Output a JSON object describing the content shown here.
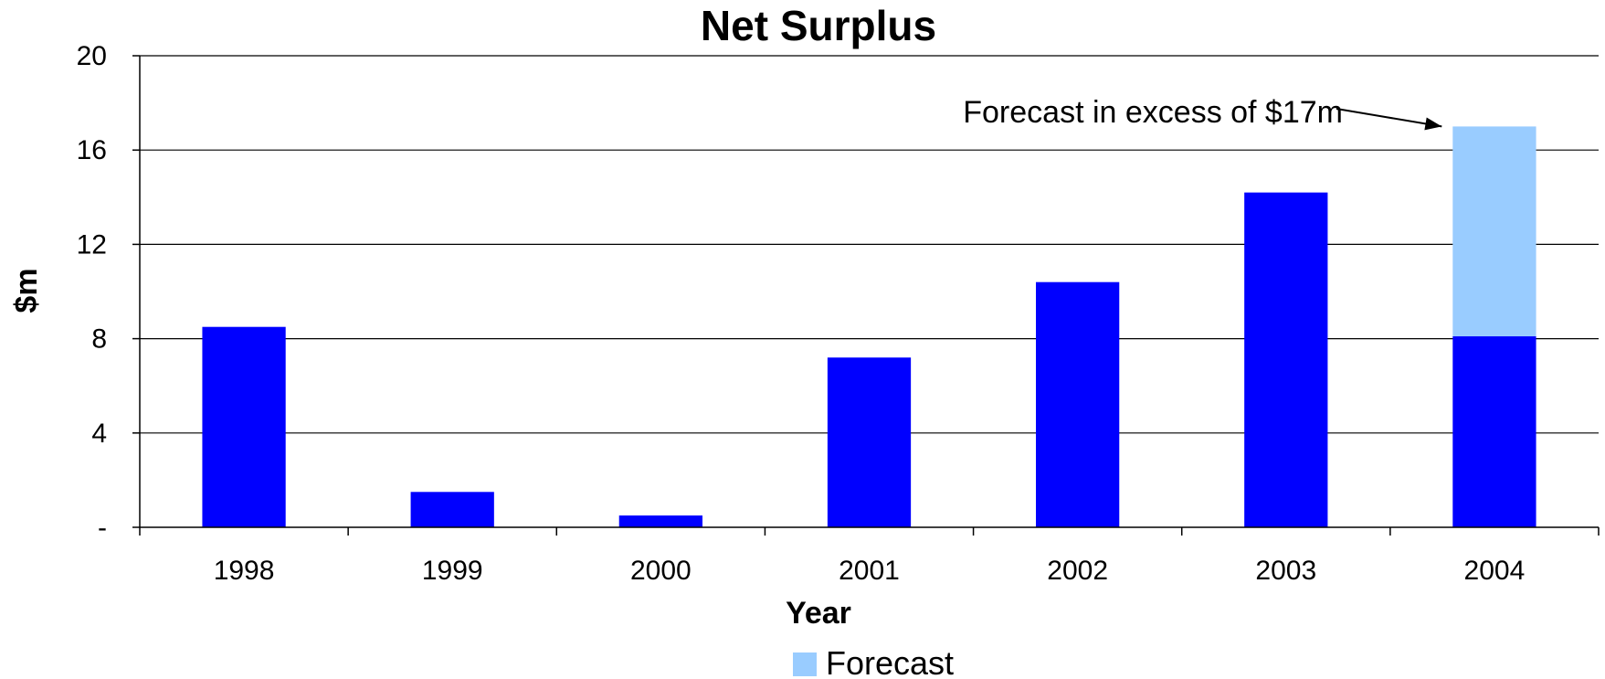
{
  "chart_data": {
    "type": "bar",
    "stacked": true,
    "title": "Net Surplus",
    "xlabel": "Year",
    "ylabel": "$m",
    "categories": [
      "1998",
      "1999",
      "2000",
      "2001",
      "2002",
      "2003",
      "2004"
    ],
    "series": [
      {
        "values": [
          8.5,
          1.5,
          0.5,
          7.2,
          10.4,
          14.2,
          8.1
        ],
        "color": "#0000ff"
      },
      {
        "name": "Forecast",
        "values": [
          0,
          0,
          0,
          0,
          0,
          0,
          8.9
        ],
        "color": "#99ccff"
      }
    ],
    "ylim": [
      0,
      20
    ],
    "yticks": [
      0,
      4,
      8,
      12,
      16,
      20
    ],
    "ytick_labels": [
      "-",
      "4",
      "8",
      "12",
      "16",
      "20"
    ],
    "grid": true,
    "legend": {
      "position": "bottom",
      "entries": [
        "Forecast"
      ]
    },
    "annotation": {
      "text": "Forecast in excess of $17m",
      "target_category": "2004",
      "target_value": 17
    }
  }
}
